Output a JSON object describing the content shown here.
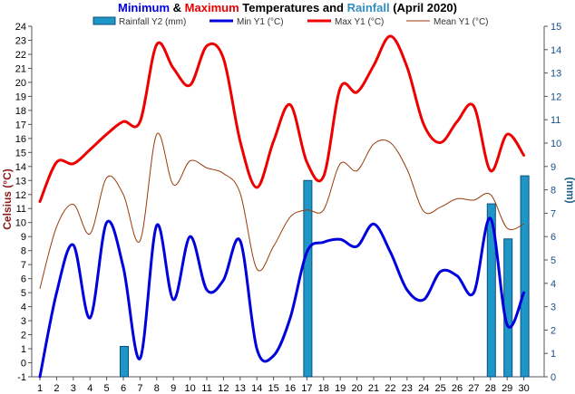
{
  "chart_data": {
    "type": "line",
    "title": {
      "part1": "Minimum",
      "amp": " & ",
      "part2": "Maximum",
      "part3": " Temperatures and ",
      "part4": "Rainfall",
      "part5": " (April 2020)"
    },
    "colors": {
      "min": "#0000dd",
      "max": "#ee0000",
      "mean": "#9a3a0a",
      "rain_fill": "#1e96c8",
      "rain_stroke": "#0c4f78",
      "rain_title": "#2f8fbf",
      "left_axis": "#8b1a1a",
      "right_axis": "#1a5f8a"
    },
    "ylabel": "Celsius (°C)",
    "y2label": "(mm)",
    "ylim": [
      -1,
      24
    ],
    "y2lim": [
      0,
      15
    ],
    "x": [
      1,
      2,
      3,
      4,
      5,
      6,
      7,
      8,
      9,
      10,
      11,
      12,
      13,
      14,
      15,
      16,
      17,
      18,
      19,
      20,
      21,
      22,
      23,
      24,
      25,
      26,
      27,
      28,
      29,
      30
    ],
    "x_ticks": [
      "1",
      "2",
      "3",
      "4",
      "5",
      "6",
      "7",
      "8",
      "9",
      "10",
      "11",
      "12",
      "13",
      "14",
      "15",
      "16",
      "17",
      "18",
      "19",
      "20",
      "21",
      "22",
      "23",
      "24",
      "25",
      "26",
      "27",
      "28",
      "29",
      "30"
    ],
    "y_ticks": [
      "-1",
      "0",
      "1",
      "2",
      "3",
      "4",
      "5",
      "6",
      "7",
      "8",
      "9",
      "10",
      "11",
      "12",
      "13",
      "14",
      "15",
      "16",
      "17",
      "18",
      "19",
      "20",
      "21",
      "22",
      "23",
      "24"
    ],
    "y2_ticks": [
      "0",
      "1",
      "2",
      "3",
      "4",
      "5",
      "6",
      "7",
      "8",
      "9",
      "10",
      "11",
      "12",
      "13",
      "14",
      "15"
    ],
    "legend": {
      "rain": "Rainfall Y2 (mm)",
      "min": "Min Y1 (°C)",
      "max": "Max Y1 (°C)",
      "mean": "Mean Y1 (°C)"
    },
    "series": [
      {
        "name": "Min Y1 (°C)",
        "values": [
          -1.0,
          5.0,
          8.4,
          3.2,
          10.0,
          6.8,
          0.3,
          9.8,
          4.5,
          9.0,
          5.2,
          5.9,
          8.7,
          1.0,
          0.5,
          3.2,
          7.9,
          8.6,
          8.8,
          8.3,
          9.9,
          7.9,
          5.2,
          4.5,
          6.5,
          6.2,
          5.0,
          10.3,
          2.7,
          5.0
        ]
      },
      {
        "name": "Max Y1 (°C)",
        "values": [
          11.5,
          14.3,
          14.2,
          15.2,
          16.3,
          17.2,
          17.2,
          22.7,
          21.0,
          19.8,
          22.6,
          21.7,
          15.8,
          12.5,
          15.8,
          18.4,
          14.3,
          13.3,
          19.6,
          19.3,
          21.2,
          23.3,
          21.1,
          17.0,
          15.7,
          17.2,
          18.3,
          13.7,
          16.3,
          14.8
        ]
      },
      {
        "name": "Mean Y1 (°C)",
        "values": [
          5.3,
          9.7,
          11.3,
          9.2,
          13.2,
          12.0,
          8.7,
          16.3,
          12.7,
          14.4,
          13.9,
          13.5,
          12.1,
          6.7,
          8.3,
          10.4,
          10.9,
          10.9,
          14.2,
          13.7,
          15.6,
          15.7,
          13.8,
          10.8,
          11.1,
          11.7,
          11.6,
          12.0,
          9.6,
          9.9
        ]
      }
    ],
    "rainfall": {
      "name": "Rainfall Y2 (mm)",
      "values": [
        0,
        0,
        0,
        0,
        0,
        1.3,
        0,
        0,
        0,
        0,
        0,
        0,
        0,
        0,
        0,
        0,
        8.4,
        0,
        0,
        0,
        0,
        0,
        0,
        0,
        0,
        0,
        0,
        7.4,
        5.9,
        8.6
      ]
    },
    "grid": false,
    "legend_placement": "top-center"
  }
}
